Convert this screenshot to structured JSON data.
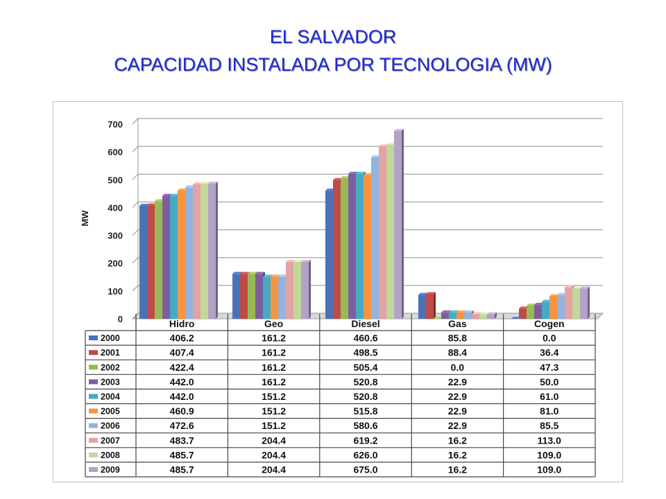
{
  "header": {
    "title_line1": "EL SALVADOR",
    "title_line2": "CAPACIDAD INSTALADA POR TECNOLOGIA (MW)"
  },
  "chart_data": {
    "type": "bar",
    "title": "",
    "xlabel": "",
    "ylabel": "MW",
    "ylim": [
      0,
      700
    ],
    "yticks": [
      0,
      100,
      200,
      300,
      400,
      500,
      600,
      700
    ],
    "grid": true,
    "legend": "data-table",
    "categories": [
      "Hidro",
      "Geo",
      "Diesel",
      "Gas",
      "Cogen"
    ],
    "series": [
      {
        "name": "2000",
        "color": "#4a72b8",
        "values": [
          406.2,
          161.2,
          460.6,
          85.8,
          0.0
        ],
        "labels": [
          "406.2",
          "161.2",
          "460.6",
          "85.8",
          "0.0"
        ]
      },
      {
        "name": "2001",
        "color": "#be4b48",
        "values": [
          407.4,
          161.2,
          498.5,
          88.4,
          36.4
        ],
        "labels": [
          "407.4",
          "161.2",
          "498.5",
          "88.4",
          "36.4"
        ]
      },
      {
        "name": "2002",
        "color": "#98b954",
        "values": [
          422.4,
          161.2,
          505.4,
          0.0,
          47.3
        ],
        "labels": [
          "422.4",
          "161.2",
          "505.4",
          "0.0",
          "47.3"
        ]
      },
      {
        "name": "2003",
        "color": "#7d5fa0",
        "values": [
          442.0,
          161.2,
          520.8,
          22.9,
          50.0
        ],
        "labels": [
          "442.0",
          "161.2",
          "520.8",
          "22.9",
          "50.0"
        ]
      },
      {
        "name": "2004",
        "color": "#46aac4",
        "values": [
          442.0,
          151.2,
          520.8,
          22.9,
          61.0
        ],
        "labels": [
          "442.0",
          "151.2",
          "520.8",
          "22.9",
          "61.0"
        ]
      },
      {
        "name": "2005",
        "color": "#f59540",
        "values": [
          460.9,
          151.2,
          515.8,
          22.9,
          81.0
        ],
        "labels": [
          "460.9",
          "151.2",
          "515.8",
          "22.9",
          "81.0"
        ]
      },
      {
        "name": "2006",
        "color": "#93b3e0",
        "values": [
          472.6,
          151.2,
          580.6,
          22.9,
          85.5
        ],
        "labels": [
          "472.6",
          "151.2",
          "580.6",
          "22.9",
          "85.5"
        ]
      },
      {
        "name": "2007",
        "color": "#e2a3a2",
        "values": [
          483.7,
          204.4,
          619.2,
          16.2,
          113.0
        ],
        "labels": [
          "483.7",
          "204.4",
          "619.2",
          "16.2",
          "113.0"
        ]
      },
      {
        "name": "2008",
        "color": "#c4d79b",
        "values": [
          485.7,
          204.4,
          626.0,
          16.2,
          109.0
        ],
        "labels": [
          "485.7",
          "204.4",
          "626.0",
          "16.2",
          "109.0"
        ]
      },
      {
        "name": "2009",
        "color": "#b3a2c7",
        "values": [
          485.7,
          204.4,
          675.0,
          16.2,
          109.0
        ],
        "labels": [
          "485.7",
          "204.4",
          "675.0",
          "16.2",
          "109.0"
        ]
      }
    ]
  }
}
